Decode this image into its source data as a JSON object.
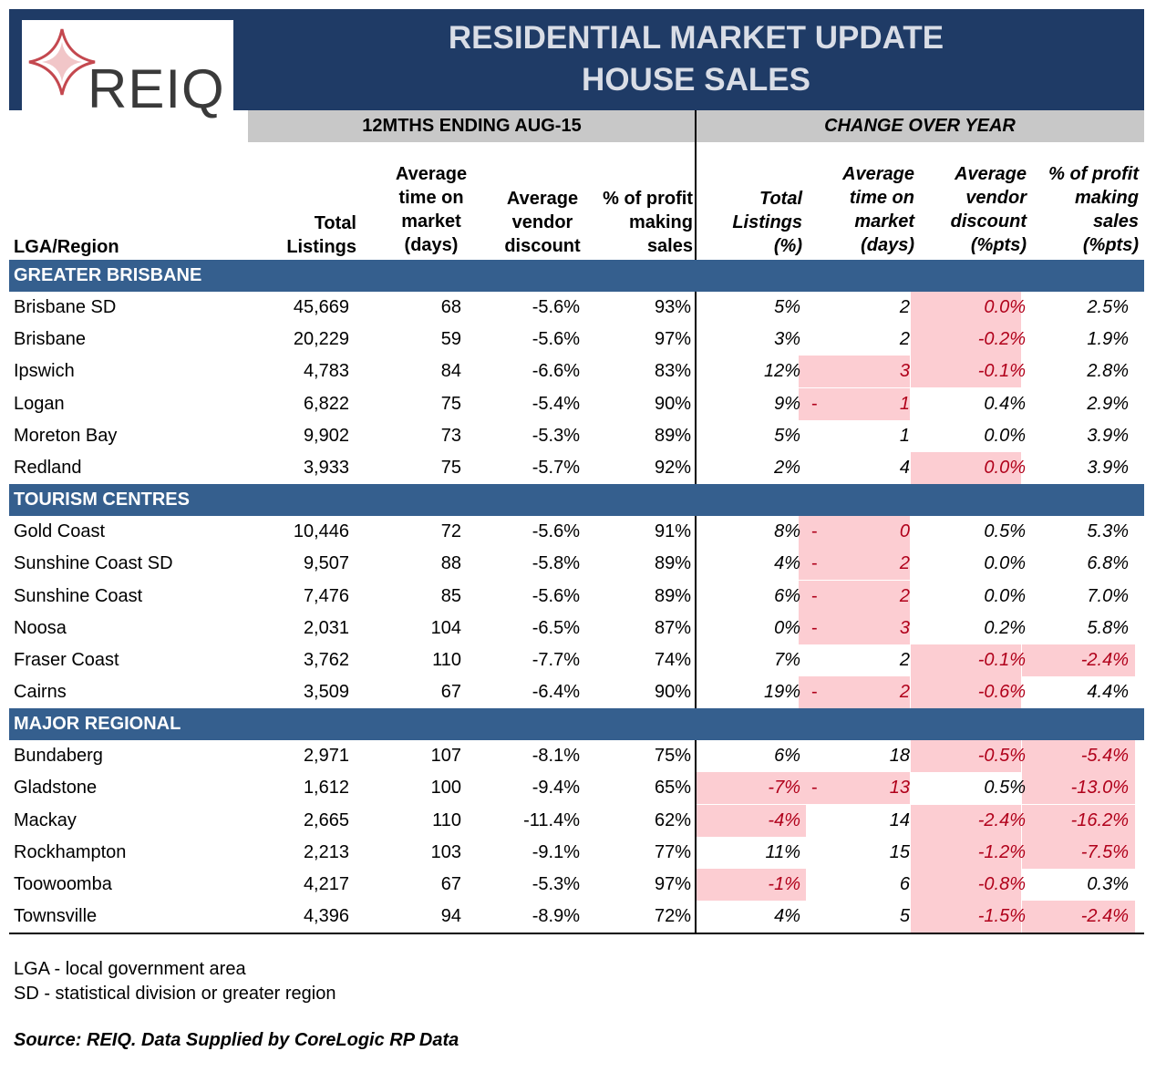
{
  "logo": {
    "text": "REIQ"
  },
  "header": {
    "title_line1": "RESIDENTIAL MARKET UPDATE",
    "title_line2": "HOUSE SALES",
    "period_label": "12MTHS ENDING AUG-15",
    "change_label": "CHANGE OVER YEAR"
  },
  "columns": {
    "region": "LGA/Region",
    "total_listings": [
      "Total",
      "Listings"
    ],
    "avg_time": [
      "Average",
      "time on",
      "market",
      "(days)"
    ],
    "avg_discount": [
      "Average",
      "vendor",
      "discount"
    ],
    "profit_sales": [
      "% of profit",
      "making",
      "sales"
    ],
    "chg_listings": [
      "Total",
      "Listings",
      "(%)"
    ],
    "chg_time": [
      "Average",
      "time on",
      "market",
      "(days)"
    ],
    "chg_discount": [
      "Average",
      "vendor",
      "discount",
      "(%pts)"
    ],
    "chg_profit": [
      "% of profit",
      "making",
      "sales",
      "(%pts)"
    ]
  },
  "sections": [
    {
      "name": "GREATER BRISBANE",
      "rows": [
        {
          "region": "Brisbane SD",
          "listings": "45,669",
          "time": "68",
          "discount": "-5.6%",
          "profit": "93%",
          "c_listings": "5%",
          "c_time": "2",
          "c_time_dash": "",
          "c_discount": "0.0%",
          "c_profit": "2.5%"
        },
        {
          "region": "Brisbane",
          "listings": "20,229",
          "time": "59",
          "discount": "-5.6%",
          "profit": "97%",
          "c_listings": "3%",
          "c_time": "2",
          "c_time_dash": "",
          "c_discount": "-0.2%",
          "c_profit": "1.9%"
        },
        {
          "region": "Ipswich",
          "listings": "4,783",
          "time": "84",
          "discount": "-6.6%",
          "profit": "83%",
          "c_listings": "12%",
          "c_time": "3",
          "c_time_dash": "",
          "c_discount": "-0.1%",
          "c_profit": "2.8%"
        },
        {
          "region": "Logan",
          "listings": "6,822",
          "time": "75",
          "discount": "-5.4%",
          "profit": "90%",
          "c_listings": "9%",
          "c_time": "1",
          "c_time_dash": "-",
          "c_discount": "0.4%",
          "c_profit": "2.9%"
        },
        {
          "region": "Moreton Bay",
          "listings": "9,902",
          "time": "73",
          "discount": "-5.3%",
          "profit": "89%",
          "c_listings": "5%",
          "c_time": "1",
          "c_time_dash": "",
          "c_discount": "0.0%",
          "c_profit": "3.9%"
        },
        {
          "region": "Redland",
          "listings": "3,933",
          "time": "75",
          "discount": "-5.7%",
          "profit": "92%",
          "c_listings": "2%",
          "c_time": "4",
          "c_time_dash": "",
          "c_discount": "0.0%",
          "c_profit": "3.9%"
        }
      ]
    },
    {
      "name": "TOURISM CENTRES",
      "rows": [
        {
          "region": "Gold Coast",
          "listings": "10,446",
          "time": "72",
          "discount": "-5.6%",
          "profit": "91%",
          "c_listings": "8%",
          "c_time": "0",
          "c_time_dash": "-",
          "c_discount": "0.5%",
          "c_profit": "5.3%"
        },
        {
          "region": "Sunshine Coast SD",
          "listings": "9,507",
          "time": "88",
          "discount": "-5.8%",
          "profit": "89%",
          "c_listings": "4%",
          "c_time": "2",
          "c_time_dash": "-",
          "c_discount": "0.0%",
          "c_profit": "6.8%"
        },
        {
          "region": "Sunshine Coast",
          "listings": "7,476",
          "time": "85",
          "discount": "-5.6%",
          "profit": "89%",
          "c_listings": "6%",
          "c_time": "2",
          "c_time_dash": "-",
          "c_discount": "0.0%",
          "c_profit": "7.0%"
        },
        {
          "region": "Noosa",
          "listings": "2,031",
          "time": "104",
          "discount": "-6.5%",
          "profit": "87%",
          "c_listings": "0%",
          "c_time": "3",
          "c_time_dash": "-",
          "c_discount": "0.2%",
          "c_profit": "5.8%"
        },
        {
          "region": "Fraser Coast",
          "listings": "3,762",
          "time": "110",
          "discount": "-7.7%",
          "profit": "74%",
          "c_listings": "7%",
          "c_time": "2",
          "c_time_dash": "",
          "c_discount": "-0.1%",
          "c_profit": "-2.4%"
        },
        {
          "region": "Cairns",
          "listings": "3,509",
          "time": "67",
          "discount": "-6.4%",
          "profit": "90%",
          "c_listings": "19%",
          "c_time": "2",
          "c_time_dash": "-",
          "c_discount": "-0.6%",
          "c_profit": "4.4%"
        }
      ]
    },
    {
      "name": "MAJOR REGIONAL",
      "rows": [
        {
          "region": "Bundaberg",
          "listings": "2,971",
          "time": "107",
          "discount": "-8.1%",
          "profit": "75%",
          "c_listings": "6%",
          "c_time": "18",
          "c_time_dash": "",
          "c_discount": "-0.5%",
          "c_profit": "-5.4%"
        },
        {
          "region": "Gladstone",
          "listings": "1,612",
          "time": "100",
          "discount": "-9.4%",
          "profit": "65%",
          "c_listings": "-7%",
          "c_time": "13",
          "c_time_dash": "-",
          "c_discount": "0.5%",
          "c_profit": "-13.0%"
        },
        {
          "region": "Mackay",
          "listings": "2,665",
          "time": "110",
          "discount": "-11.4%",
          "profit": "62%",
          "c_listings": "-4%",
          "c_time": "14",
          "c_time_dash": "",
          "c_discount": "-2.4%",
          "c_profit": "-16.2%"
        },
        {
          "region": "Rockhampton",
          "listings": "2,213",
          "time": "103",
          "discount": "-9.1%",
          "profit": "77%",
          "c_listings": "11%",
          "c_time": "15",
          "c_time_dash": "",
          "c_discount": "-1.2%",
          "c_profit": "-7.5%"
        },
        {
          "region": "Toowoomba",
          "listings": "4,217",
          "time": "67",
          "discount": "-5.3%",
          "profit": "97%",
          "c_listings": "-1%",
          "c_time": "6",
          "c_time_dash": "",
          "c_discount": "-0.8%",
          "c_profit": "0.3%"
        },
        {
          "region": "Townsville",
          "listings": "4,396",
          "time": "94",
          "discount": "-8.9%",
          "profit": "72%",
          "c_listings": "4%",
          "c_time": "5",
          "c_time_dash": "",
          "c_discount": "-1.5%",
          "c_profit": "-2.4%"
        }
      ]
    }
  ],
  "highlights": [
    [
      false,
      false,
      true,
      false
    ],
    [
      false,
      false,
      true,
      false
    ],
    [
      false,
      true,
      true,
      false
    ],
    [
      false,
      true,
      false,
      false
    ],
    [
      false,
      false,
      false,
      false
    ],
    [
      false,
      false,
      true,
      false
    ],
    [
      false,
      true,
      false,
      false
    ],
    [
      false,
      true,
      false,
      false
    ],
    [
      false,
      true,
      false,
      false
    ],
    [
      false,
      true,
      false,
      false
    ],
    [
      false,
      false,
      true,
      true
    ],
    [
      false,
      true,
      true,
      false
    ],
    [
      false,
      false,
      true,
      true
    ],
    [
      true,
      true,
      false,
      true
    ],
    [
      true,
      false,
      true,
      true
    ],
    [
      false,
      false,
      true,
      true
    ],
    [
      true,
      false,
      true,
      false
    ],
    [
      false,
      false,
      true,
      true
    ]
  ],
  "colors": {
    "title_band": "#1f3b66",
    "section_band": "#355f8e",
    "highlight": "#fccdd2",
    "negative_text": "#b0001a"
  },
  "notes": {
    "line1": "LGA - local government area",
    "line2": "SD - statistical division or greater region"
  },
  "source": "Source: REIQ. Data Supplied by CoreLogic RP Data"
}
